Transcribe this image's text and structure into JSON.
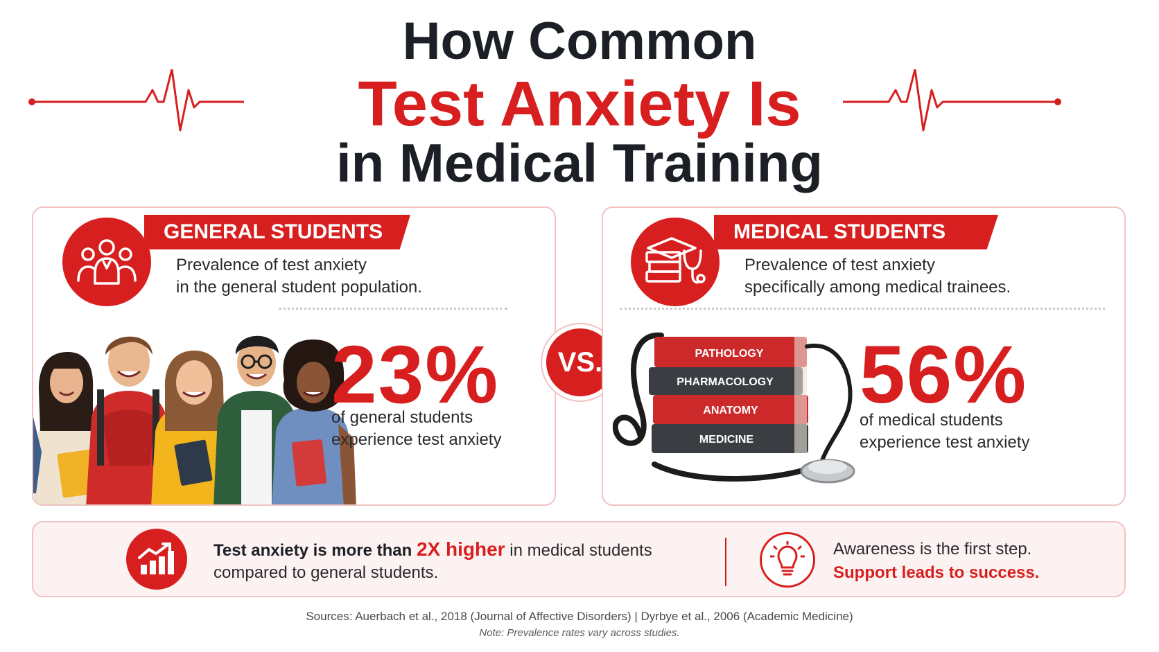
{
  "title": {
    "line1": "How Common",
    "line2": "Test Anxiety Is",
    "line3": "in Medical Training"
  },
  "general": {
    "heading": "GENERAL STUDENTS",
    "desc_line1": "Prevalence of test anxiety",
    "desc_line2": "in the general student population.",
    "stat": "23%",
    "sub_line1": "of general students",
    "sub_line2": "experience test anxiety",
    "icon": "students-group-icon"
  },
  "vs_label": "VS.",
  "medical": {
    "heading": "MEDICAL STUDENTS",
    "desc_line1": "Prevalence of test anxiety",
    "desc_line2": "specifically among medical trainees.",
    "stat": "56%",
    "sub_line1": "of medical students",
    "sub_line2": "experience test anxiety",
    "icon": "books-stethoscope-icon",
    "book_labels": [
      "PATHOLOGY",
      "PHARMACOLOGY",
      "ANATOMY",
      "MEDICINE"
    ]
  },
  "bottom": {
    "left_bold": "Test anxiety is more than",
    "left_highlight": "2X higher",
    "left_rest": "in medical students",
    "left_line2": "compared to general students.",
    "right_line1": "Awareness is the first step.",
    "right_line2": "Support leads to success.",
    "left_icon": "growth-chart-icon",
    "right_icon": "lightbulb-icon"
  },
  "sources": "Sources:  Auerbach et al., 2018 (Journal of Affective Disorders)  |  Dyrbye et al., 2006 (Academic Medicine)",
  "note": "Note: Prevalence rates vary across studies.",
  "colors": {
    "accent": "#d81f1f",
    "dark": "#1c1f26",
    "border": "#f1c3c3",
    "band_bg": "#fdf2f2"
  }
}
